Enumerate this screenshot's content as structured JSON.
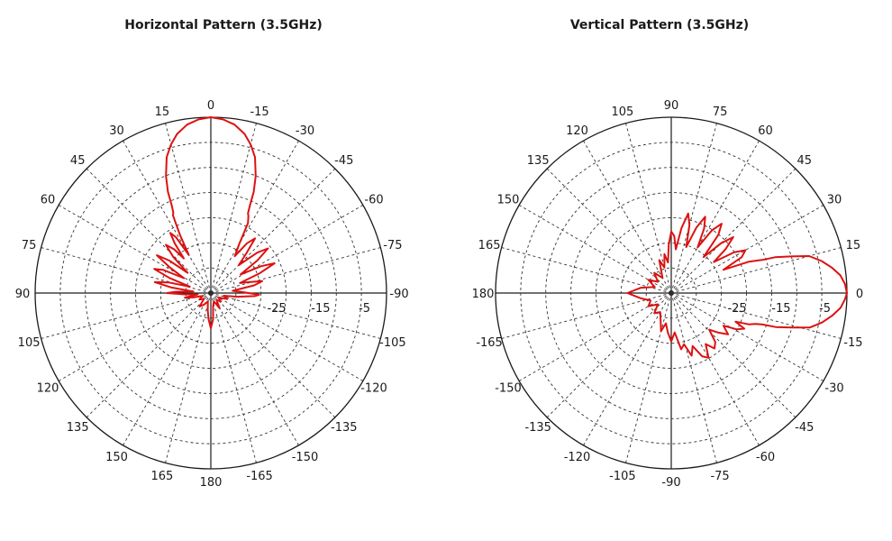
{
  "chart_data": [
    {
      "type": "polar",
      "title": "Horizontal Pattern (3.5GHz)",
      "angle_labels": [
        {
          "text": "0",
          "angle": 0
        },
        {
          "text": "15",
          "angle": 15
        },
        {
          "text": "30",
          "angle": 30
        },
        {
          "text": "45",
          "angle": 45
        },
        {
          "text": "60",
          "angle": 60
        },
        {
          "text": "75",
          "angle": 75
        },
        {
          "text": "90",
          "angle": 90
        },
        {
          "text": "105",
          "angle": 105
        },
        {
          "text": "120",
          "angle": 120
        },
        {
          "text": "135",
          "angle": 135
        },
        {
          "text": "150",
          "angle": 150
        },
        {
          "text": "165",
          "angle": 165
        },
        {
          "text": "180",
          "angle": 180
        },
        {
          "text": "-165",
          "angle": 195
        },
        {
          "text": "-150",
          "angle": 210
        },
        {
          "text": "-135",
          "angle": 225
        },
        {
          "text": "-120",
          "angle": 240
        },
        {
          "text": "-105",
          "angle": 255
        },
        {
          "text": "-90",
          "angle": 270
        },
        {
          "text": "-75",
          "angle": 285
        },
        {
          "text": "-60",
          "angle": 300
        },
        {
          "text": "-45",
          "angle": 315
        },
        {
          "text": "-30",
          "angle": 330
        },
        {
          "text": "-15",
          "angle": 345
        }
      ],
      "radial_labels": [
        {
          "text": "-25",
          "db": -25
        },
        {
          "text": "-15",
          "db": -15
        },
        {
          "text": "-5",
          "db": -5
        }
      ],
      "r_range_db": [
        -40,
        0
      ],
      "grid": true,
      "series": [
        {
          "color": "#dd1111",
          "points": [
            [
              0,
              0
            ],
            [
              4,
              -0.4
            ],
            [
              8,
              -1.3
            ],
            [
              12,
              -3
            ],
            [
              15,
              -5
            ],
            [
              18,
              -7.5
            ],
            [
              21,
              -11.5
            ],
            [
              23,
              -15
            ],
            [
              24,
              -18
            ],
            [
              25,
              -19.8
            ],
            [
              26,
              -20.3
            ],
            [
              28,
              -25
            ],
            [
              30,
              -30
            ],
            [
              32,
              -25
            ],
            [
              34,
              -23.5
            ],
            [
              36,
              -26
            ],
            [
              38,
              -30
            ],
            [
              40,
              -27
            ],
            [
              43,
              -25
            ],
            [
              46,
              -28
            ],
            [
              49,
              -33
            ],
            [
              52,
              -28
            ],
            [
              55,
              -25
            ],
            [
              58,
              -29
            ],
            [
              61,
              -33
            ],
            [
              64,
              -28
            ],
            [
              67,
              -26
            ],
            [
              70,
              -30
            ],
            [
              73,
              -35
            ],
            [
              76,
              -30
            ],
            [
              79,
              -27
            ],
            [
              82,
              -31
            ],
            [
              85,
              -36
            ],
            [
              88,
              -32
            ],
            [
              90,
              -30
            ],
            [
              93,
              -34
            ],
            [
              96,
              -37
            ],
            [
              100,
              -34
            ],
            [
              104,
              -36
            ],
            [
              110,
              -38
            ],
            [
              120,
              -37
            ],
            [
              130,
              -38
            ],
            [
              140,
              -36
            ],
            [
              150,
              -37
            ],
            [
              160,
              -38
            ],
            [
              170,
              -36
            ],
            [
              175,
              -34
            ],
            [
              180,
              -32
            ],
            [
              185,
              -34
            ],
            [
              190,
              -37
            ],
            [
              200,
              -38
            ],
            [
              210,
              -36
            ],
            [
              220,
              -38
            ],
            [
              230,
              -37
            ],
            [
              240,
              -38
            ],
            [
              250,
              -36
            ],
            [
              258,
              -37
            ],
            [
              262,
              -34
            ],
            [
              266,
              -30
            ],
            [
              268,
              -29
            ],
            [
              272,
              -33
            ],
            [
              276,
              -35
            ],
            [
              280,
              -30
            ],
            [
              283,
              -28
            ],
            [
              286,
              -31
            ],
            [
              289,
              -33
            ],
            [
              292,
              -28
            ],
            [
              295,
              -24
            ],
            [
              298,
              -27
            ],
            [
              302,
              -32
            ],
            [
              305,
              -27
            ],
            [
              308,
              -23.5
            ],
            [
              311,
              -26
            ],
            [
              315,
              -31
            ],
            [
              318,
              -28
            ],
            [
              321,
              -24
            ],
            [
              324,
              -26
            ],
            [
              327,
              -30
            ],
            [
              330,
              -27
            ],
            [
              332,
              -22
            ],
            [
              334,
              -20.5
            ],
            [
              335,
              -20
            ],
            [
              336,
              -18
            ],
            [
              337,
              -15
            ],
            [
              339,
              -11.5
            ],
            [
              342,
              -7.5
            ],
            [
              345,
              -5
            ],
            [
              348,
              -3
            ],
            [
              352,
              -1.3
            ],
            [
              356,
              -0.4
            ],
            [
              360,
              0
            ]
          ]
        }
      ]
    },
    {
      "type": "polar",
      "title": "Vertical Pattern (3.5GHz)",
      "angle_labels": [
        {
          "text": "0",
          "angle": 0
        },
        {
          "text": "15",
          "angle": 15
        },
        {
          "text": "30",
          "angle": 30
        },
        {
          "text": "45",
          "angle": 45
        },
        {
          "text": "60",
          "angle": 60
        },
        {
          "text": "75",
          "angle": 75
        },
        {
          "text": "90",
          "angle": 90
        },
        {
          "text": "105",
          "angle": 105
        },
        {
          "text": "120",
          "angle": 120
        },
        {
          "text": "135",
          "angle": 135
        },
        {
          "text": "150",
          "angle": 150
        },
        {
          "text": "165",
          "angle": 165
        },
        {
          "text": "180",
          "angle": 180
        },
        {
          "text": "-165",
          "angle": 195
        },
        {
          "text": "-150",
          "angle": 210
        },
        {
          "text": "-135",
          "angle": 225
        },
        {
          "text": "-120",
          "angle": 240
        },
        {
          "text": "-105",
          "angle": 255
        },
        {
          "text": "-90",
          "angle": 270
        },
        {
          "text": "-75",
          "angle": 285
        },
        {
          "text": "-60",
          "angle": 300
        },
        {
          "text": "-45",
          "angle": 315
        },
        {
          "text": "-30",
          "angle": 330
        },
        {
          "text": "-15",
          "angle": 345
        }
      ],
      "radial_labels": [
        {
          "text": "-25",
          "db": -25
        },
        {
          "text": "-15",
          "db": -15
        },
        {
          "text": "-5",
          "db": -5
        }
      ],
      "r_range_db": [
        -40,
        0
      ],
      "grid": true,
      "series": [
        {
          "color": "#dd1111",
          "points": [
            [
              0,
              0
            ],
            [
              3,
              -0.4
            ],
            [
              6,
              -1.3
            ],
            [
              9,
              -3
            ],
            [
              12,
              -5
            ],
            [
              15,
              -7.5
            ],
            [
              17,
              -11.5
            ],
            [
              19,
              -15
            ],
            [
              20,
              -18
            ],
            [
              21,
              -19.5
            ],
            [
              22,
              -21
            ],
            [
              24,
              -27
            ],
            [
              27,
              -22
            ],
            [
              30,
              -20.5
            ],
            [
              33,
              -23
            ],
            [
              36,
              -28
            ],
            [
              39,
              -24
            ],
            [
              42,
              -21
            ],
            [
              45,
              -24
            ],
            [
              48,
              -29
            ],
            [
              51,
              -23
            ],
            [
              54,
              -20.5
            ],
            [
              57,
              -23
            ],
            [
              60,
              -28
            ],
            [
              63,
              -23.5
            ],
            [
              66,
              -21
            ],
            [
              69,
              -24
            ],
            [
              72,
              -29
            ],
            [
              75,
              -24
            ],
            [
              78,
              -21.5
            ],
            [
              81,
              -25
            ],
            [
              84,
              -30
            ],
            [
              87,
              -27
            ],
            [
              90,
              -26
            ],
            [
              93,
              -29
            ],
            [
              96,
              -33
            ],
            [
              100,
              -31
            ],
            [
              105,
              -34
            ],
            [
              110,
              -32
            ],
            [
              120,
              -36
            ],
            [
              130,
              -34
            ],
            [
              140,
              -36
            ],
            [
              150,
              -34
            ],
            [
              160,
              -36
            ],
            [
              170,
              -33
            ],
            [
              180,
              -30
            ],
            [
              190,
              -33
            ],
            [
              200,
              -35
            ],
            [
              210,
              -34
            ],
            [
              220,
              -36
            ],
            [
              230,
              -34
            ],
            [
              240,
              -35
            ],
            [
              250,
              -33
            ],
            [
              255,
              -31
            ],
            [
              260,
              -33
            ],
            [
              265,
              -31
            ],
            [
              270,
              -29
            ],
            [
              275,
              -31
            ],
            [
              280,
              -27
            ],
            [
              284,
              -28
            ],
            [
              288,
              -25
            ],
            [
              292,
              -27
            ],
            [
              296,
              -24
            ],
            [
              300,
              -23
            ],
            [
              304,
              -26
            ],
            [
              308,
              -24
            ],
            [
              312,
              -25
            ],
            [
              316,
              -28
            ],
            [
              320,
              -26
            ],
            [
              324,
              -24
            ],
            [
              328,
              -26
            ],
            [
              331,
              -23
            ],
            [
              334,
              -21.5
            ],
            [
              336,
              -24
            ],
            [
              338,
              -21
            ],
            [
              340,
              -19.5
            ],
            [
              341,
              -18
            ],
            [
              342,
              -15
            ],
            [
              344,
              -11.5
            ],
            [
              346,
              -7.5
            ],
            [
              349,
              -5
            ],
            [
              352,
              -3
            ],
            [
              355,
              -1.3
            ],
            [
              358,
              -0.4
            ],
            [
              360,
              0
            ]
          ]
        }
      ]
    }
  ]
}
